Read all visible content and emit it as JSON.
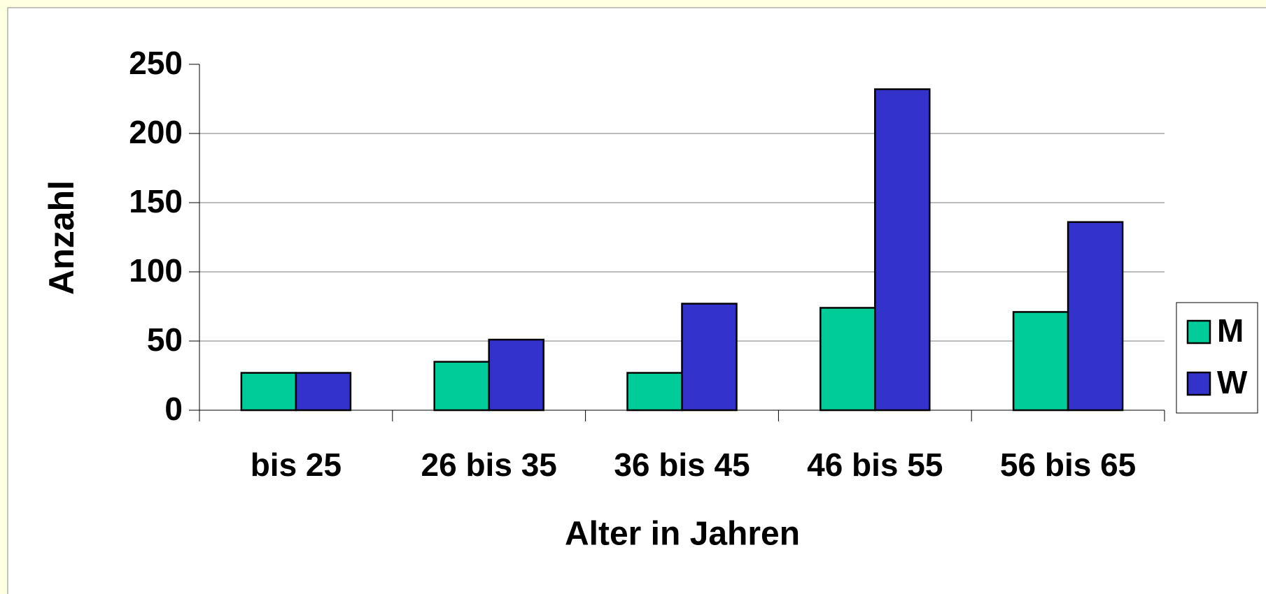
{
  "chart_data": {
    "type": "bar",
    "categories": [
      "bis 25",
      "26 bis 35",
      "36 bis 45",
      "46 bis 55",
      "56 bis 65"
    ],
    "series": [
      {
        "name": "M",
        "color": "#00cc99",
        "values": [
          27,
          35,
          27,
          74,
          71
        ]
      },
      {
        "name": "W",
        "color": "#3333cc",
        "values": [
          27,
          51,
          77,
          232,
          136
        ]
      }
    ],
    "x_label": "Alter in Jahren",
    "y_label": "Anzahl",
    "ylim": [
      0,
      250
    ],
    "yticks": [
      0,
      50,
      100,
      150,
      200,
      250
    ],
    "grid": true,
    "legend": "right"
  }
}
